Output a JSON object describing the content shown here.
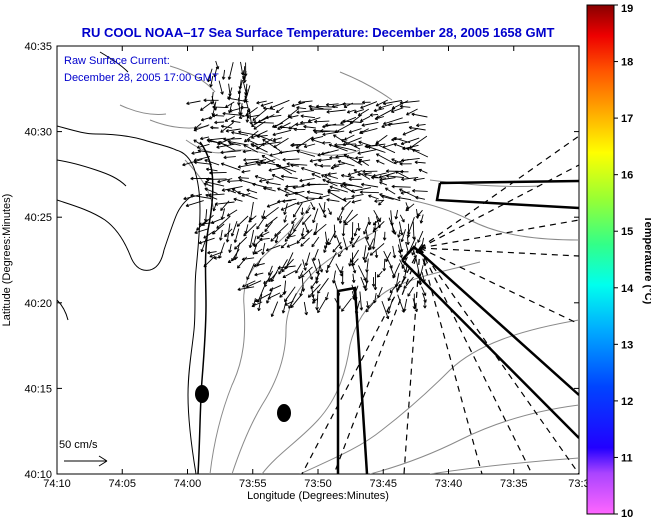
{
  "title": "RU COOL  NOAA–17  Sea Surface Temperature:  December 28, 2005 1658 GMT",
  "overlay": {
    "label": "Raw Surface Current:",
    "time": "December 28, 2005 17:00 GMT"
  },
  "x_axis": {
    "label": "Longitude (Degrees:Minutes)",
    "ticks": [
      "74:10",
      "74:05",
      "74:00",
      "73:55",
      "73:50",
      "73:45",
      "73:40",
      "73:35",
      "73:3"
    ]
  },
  "y_axis": {
    "label": "Latitude (Degrees:Minutes)",
    "ticks": [
      "40:35",
      "40:30",
      "40:25",
      "40:20",
      "40:15",
      "40:10"
    ]
  },
  "scale_vector": {
    "label": "50 cm/s"
  },
  "colorbar": {
    "label": "Temperature (°C)",
    "ticks": [
      "19",
      "18",
      "17",
      "16",
      "15",
      "14",
      "13",
      "12",
      "11",
      "10"
    ]
  },
  "colors": {
    "title": "#0000cc",
    "coast": "#000000",
    "bathymetry": "#8a8a8a"
  }
}
